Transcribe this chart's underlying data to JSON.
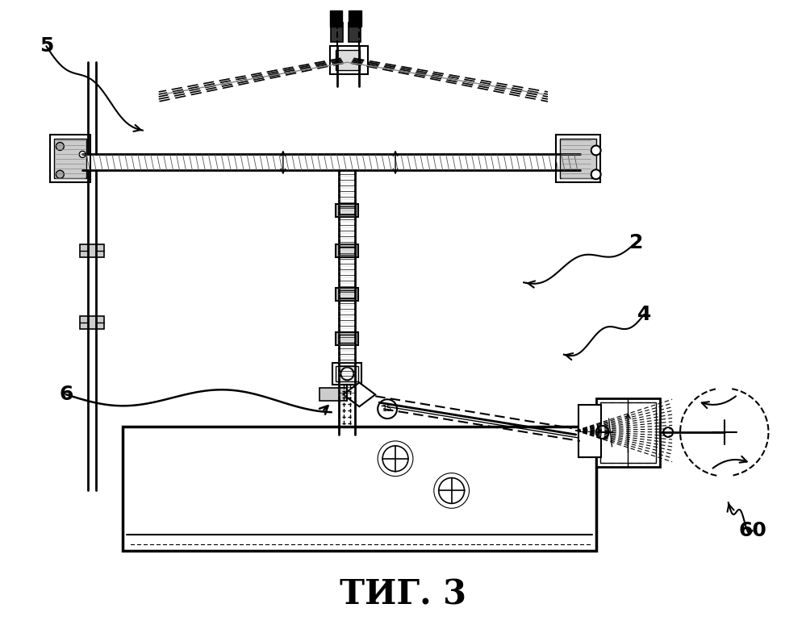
{
  "title": "ΤИГ. 3",
  "title_fontsize": 30,
  "title_fontweight": "bold",
  "bg_color": "#ffffff",
  "label_fontsize": 18,
  "fig_w": 9.99,
  "fig_h": 7.85,
  "dpi": 100
}
